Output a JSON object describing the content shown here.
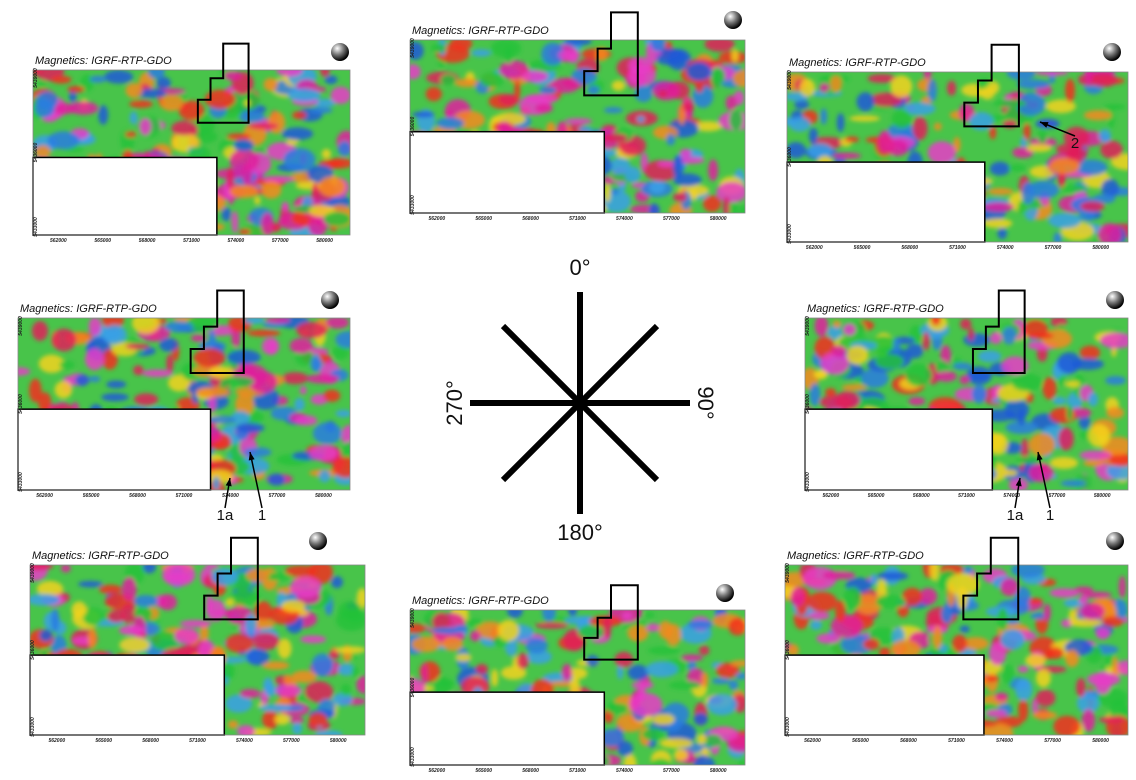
{
  "panels": [
    {
      "title": "Magnetics: IGRF-RTP-GDO",
      "annotations": []
    },
    {
      "title": "Magnetics: IGRF-RTP-GDO",
      "annotations": []
    },
    {
      "title": "Magnetics: IGRF-RTP-GDO",
      "annotations": [
        "2"
      ]
    },
    {
      "title": "Magnetics: IGRF-RTP-GDO",
      "annotations": [
        "1a",
        "1"
      ]
    },
    {
      "title": "Magnetics: IGRF-RTP-GDO",
      "annotations": [
        "1a",
        "1"
      ]
    },
    {
      "title": "Magnetics: IGRF-RTP-GDO",
      "annotations": []
    },
    {
      "title": "Magnetics: IGRF-RTP-GDO",
      "annotations": []
    },
    {
      "title": "Magnetics: IGRF-RTP-GDO",
      "annotations": []
    }
  ],
  "axes": {
    "x_tick_labels": [
      "562000",
      "565000",
      "568000",
      "571000",
      "574000",
      "577000",
      "580000"
    ],
    "y_tick_labels": [
      "5439000",
      "5436000",
      "5433000"
    ]
  },
  "compass": {
    "north": "0°",
    "east": "90°",
    "south": "180°",
    "west": "270°"
  }
}
